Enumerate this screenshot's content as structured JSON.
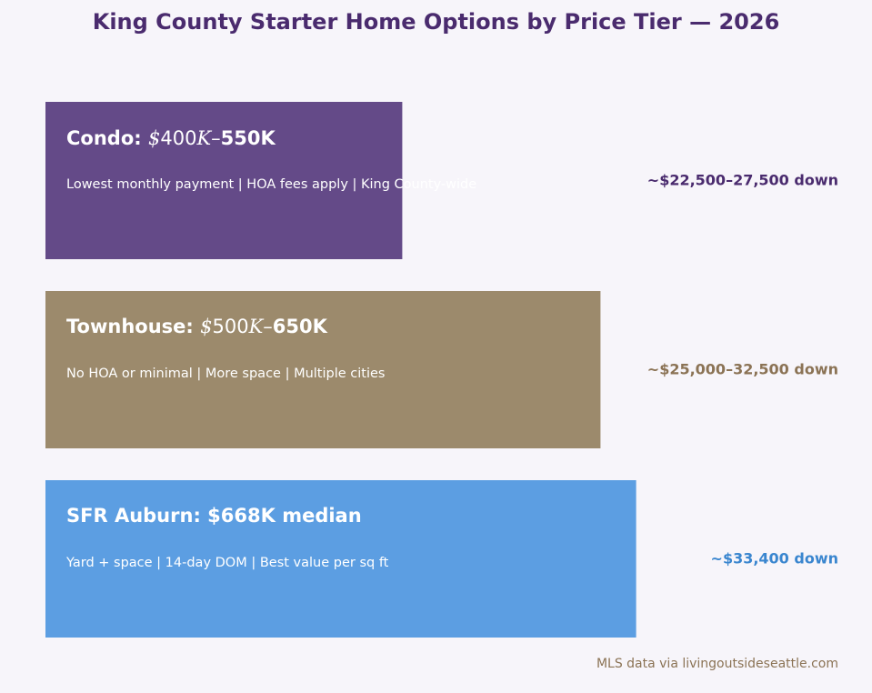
{
  "chart_data": {
    "type": "bar",
    "orientation": "horizontal",
    "title": "King County Starter Home Options by Price Tier — 2026",
    "categories": [
      "Condo",
      "Townhouse",
      "SFR Auburn"
    ],
    "values": [
      550,
      650,
      668
    ],
    "bars": [
      {
        "name": "Condo",
        "price_range": "400K–550K",
        "price_low": "400",
        "price_high": "550K",
        "value": 550,
        "subtitle": "Lowest monthly payment | HOA fees apply | King County-wide",
        "down_payment": "~$22,500–27,500 down",
        "color": "#644a88",
        "text_color": "#4a2b6e"
      },
      {
        "name": "Townhouse",
        "price_range": "500K–650K",
        "price_low": "500",
        "price_high": "650K",
        "value": 650,
        "subtitle": "No HOA or minimal | More space | Multiple cities",
        "down_payment": "~$25,000–32,500 down",
        "color": "#9c8a6c",
        "text_color": "#8b7355"
      },
      {
        "name": "SFR Auburn",
        "price_range": "$668K median",
        "value": 668,
        "subtitle": "Yard + space | 14-day DOM | Best value per sq ft",
        "down_payment": "~$33,400 down",
        "color": "#5c9ee2",
        "text_color": "#3a86cf"
      }
    ],
    "annotation": "MLS data via livingoutsideseattle.com",
    "grid": false,
    "legend": false
  }
}
